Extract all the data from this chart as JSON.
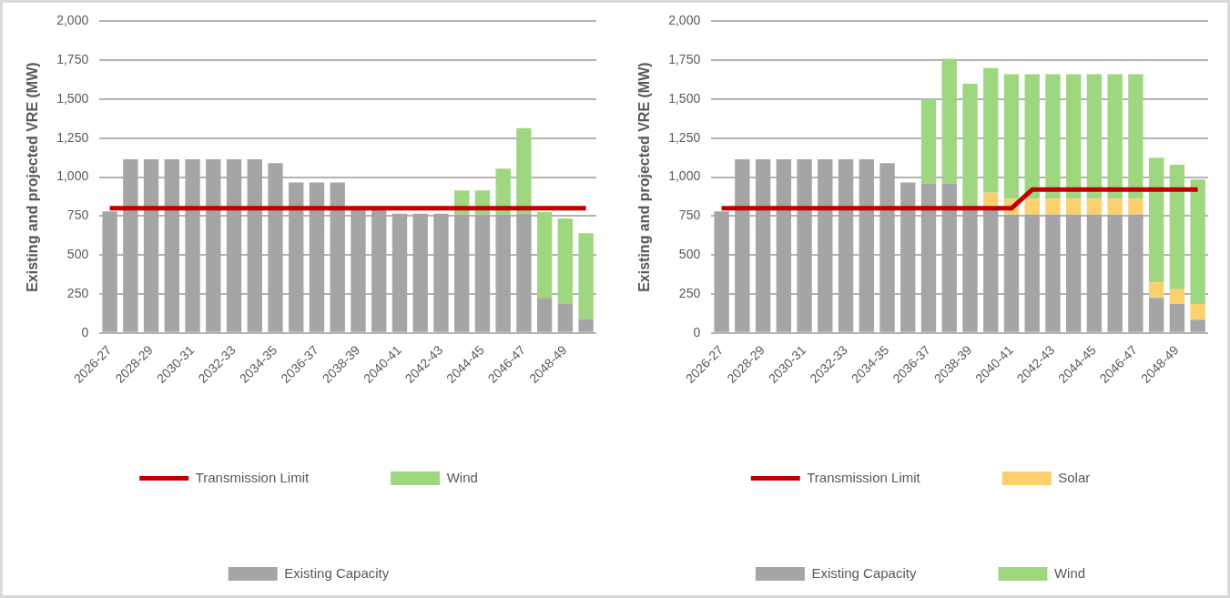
{
  "chart_data": [
    {
      "type": "bar",
      "stacked": true,
      "ylabel": "Existing and projected VRE (MW)",
      "categories": [
        "2026-27",
        null,
        "2028-29",
        null,
        "2030-31",
        null,
        "2032-33",
        null,
        "2034-35",
        null,
        "2036-37",
        null,
        "2038-39",
        null,
        "2040-41",
        null,
        "2042-43",
        null,
        "2044-45",
        null,
        "2046-47",
        null,
        "2048-49",
        null
      ],
      "series": [
        {
          "name": "Existing Capacity",
          "color": "#a5a5a5",
          "values": [
            780,
            1115,
            1115,
            1115,
            1115,
            1115,
            1115,
            1115,
            1090,
            965,
            965,
            965,
            800,
            800,
            765,
            765,
            765,
            760,
            760,
            760,
            765,
            225,
            185,
            90
          ]
        },
        {
          "name": "Wind",
          "color": "#9fd680",
          "values": [
            null,
            null,
            null,
            null,
            null,
            null,
            null,
            null,
            null,
            null,
            null,
            null,
            null,
            null,
            null,
            null,
            null,
            155,
            155,
            295,
            550,
            550,
            550,
            550
          ]
        },
        {
          "name": "Transmission Limit",
          "type": "line",
          "color": "#c00000",
          "values": [
            800,
            800,
            800,
            800,
            800,
            800,
            800,
            800,
            800,
            800,
            800,
            800,
            800,
            800,
            800,
            800,
            800,
            800,
            800,
            800,
            800,
            800,
            800,
            800
          ]
        }
      ],
      "ylim": [
        0,
        2000
      ],
      "yticks": [
        0,
        250,
        500,
        750,
        {
          "value": 1000,
          "label": "1,000"
        },
        {
          "value": 1250,
          "label": "1,250"
        },
        {
          "value": 1500,
          "label": "1,500"
        },
        {
          "value": 1750,
          "label": "1,750"
        },
        {
          "value": 2000,
          "label": "2,000"
        }
      ],
      "grid": "y",
      "legend": "bottom",
      "marker": "none"
    },
    {
      "type": "bar",
      "stacked": true,
      "ylabel": "Existing and projected VRE (MW)",
      "categories": [
        "2026-27",
        null,
        "2028-29",
        null,
        "2030-31",
        null,
        "2032-33",
        null,
        "2034-35",
        null,
        "2036-37",
        null,
        "2038-39",
        null,
        "2040-41",
        null,
        "2042-43",
        null,
        "2044-45",
        null,
        "2046-47",
        null,
        "2048-49",
        null
      ],
      "series": [
        {
          "name": "Existing Capacity",
          "color": "#a5a5a5",
          "values": [
            780,
            1115,
            1115,
            1115,
            1115,
            1115,
            1115,
            1115,
            1090,
            965,
            960,
            960,
            800,
            800,
            760,
            760,
            760,
            760,
            760,
            760,
            760,
            225,
            185,
            85
          ]
        },
        {
          "name": "Solar",
          "color": "#fdd06e",
          "values": [
            null,
            null,
            null,
            null,
            null,
            null,
            null,
            null,
            null,
            null,
            null,
            null,
            null,
            100,
            100,
            100,
            100,
            100,
            100,
            100,
            100,
            100,
            95,
            100
          ]
        },
        {
          "name": "Wind",
          "color": "#9fd680",
          "values": [
            null,
            null,
            null,
            null,
            null,
            null,
            null,
            null,
            null,
            null,
            540,
            800,
            800,
            800,
            800,
            800,
            800,
            800,
            800,
            800,
            800,
            800,
            800,
            800
          ]
        },
        {
          "name": "Transmission Limit",
          "type": "line",
          "color": "#c00000",
          "values": [
            800,
            800,
            800,
            800,
            800,
            800,
            800,
            800,
            800,
            800,
            800,
            800,
            800,
            800,
            800,
            920,
            920,
            920,
            920,
            920,
            920,
            920,
            920,
            920
          ]
        }
      ],
      "ylim": [
        0,
        2000
      ],
      "yticks": [
        0,
        250,
        500,
        750,
        {
          "value": 1000,
          "label": "1,000"
        },
        {
          "value": 1250,
          "label": "1,250"
        },
        {
          "value": 1500,
          "label": "1,500"
        },
        {
          "value": 1750,
          "label": "1,750"
        },
        {
          "value": 2000,
          "label": "2,000"
        }
      ],
      "grid": "y",
      "legend": "bottom",
      "marker": "none"
    }
  ]
}
